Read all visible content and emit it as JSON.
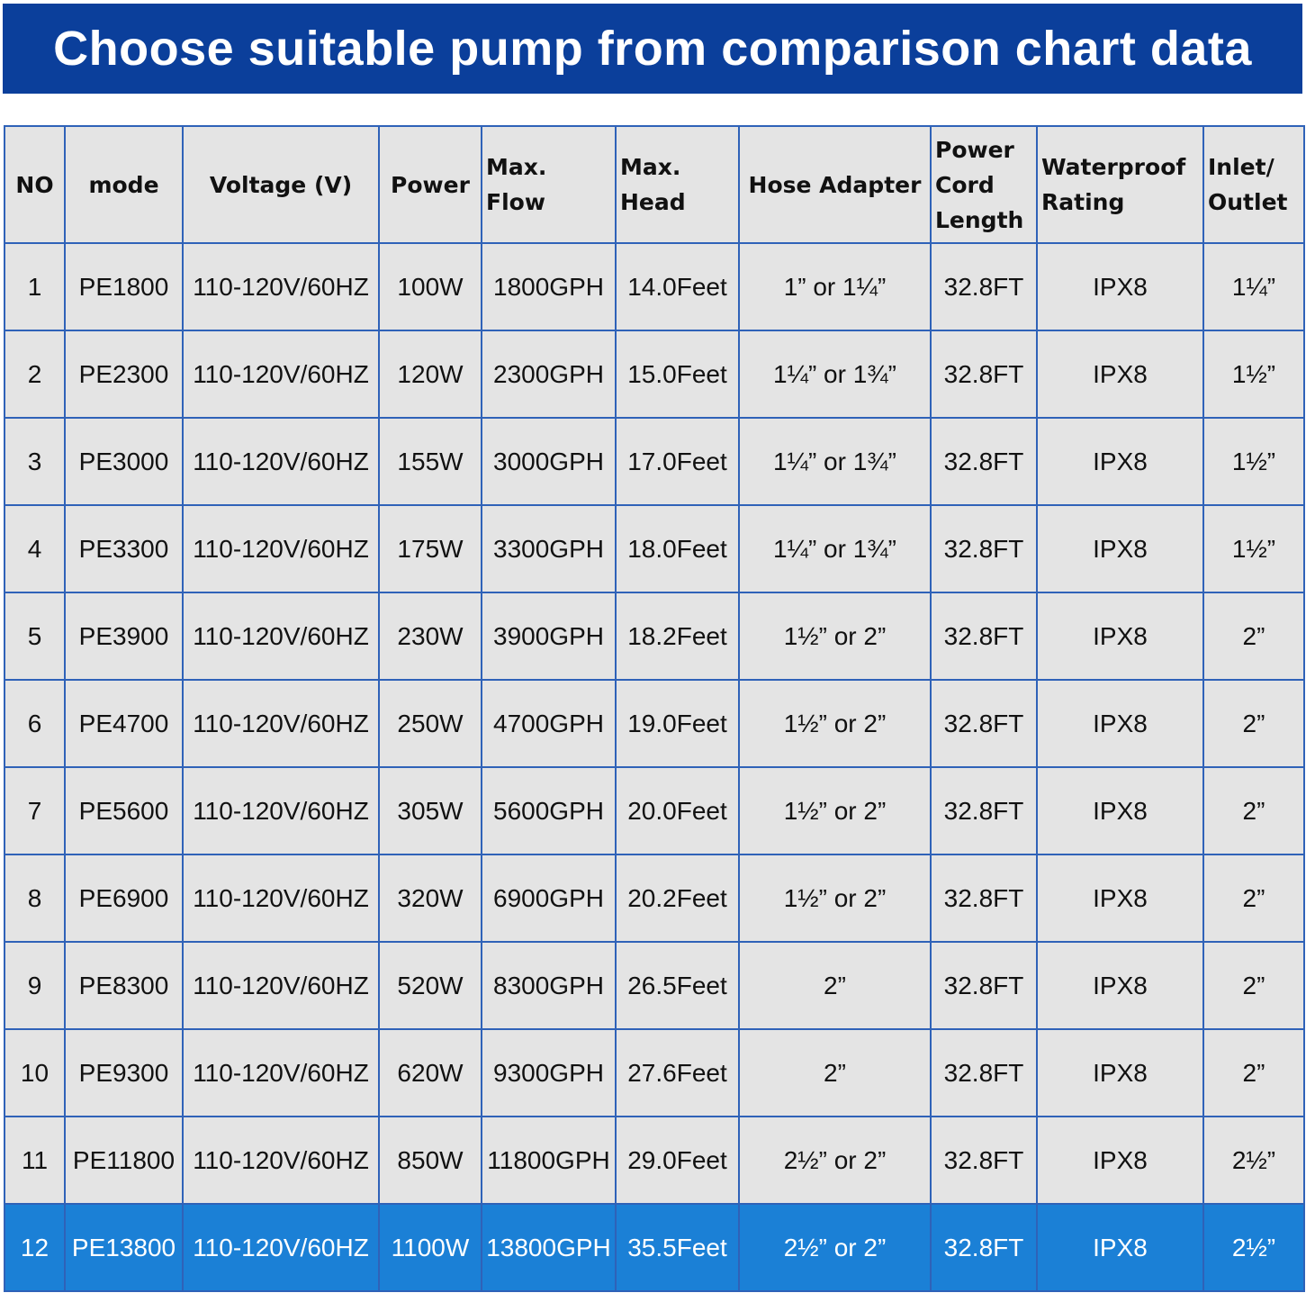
{
  "header": {
    "title": "Choose suitable pump from comparison chart data"
  },
  "table": {
    "columns": [
      "NO",
      "mode",
      "Voltage (V)",
      "Power",
      "Max. Flow",
      "Max. Head",
      "Hose Adapter",
      "Power Cord Length",
      "Waterproof Rating",
      "Inlet/ Outlet"
    ],
    "rows": [
      [
        "1",
        "PE1800",
        "110-120V/60HZ",
        "100W",
        "1800GPH",
        "14.0Feet",
        "1” or 1¼”",
        "32.8FT",
        "IPX8",
        "1¼”"
      ],
      [
        "2",
        "PE2300",
        "110-120V/60HZ",
        "120W",
        "2300GPH",
        "15.0Feet",
        "1¼” or 1¾”",
        "32.8FT",
        "IPX8",
        "1½”"
      ],
      [
        "3",
        "PE3000",
        "110-120V/60HZ",
        "155W",
        "3000GPH",
        "17.0Feet",
        "1¼” or 1¾”",
        "32.8FT",
        "IPX8",
        "1½”"
      ],
      [
        "4",
        "PE3300",
        "110-120V/60HZ",
        "175W",
        "3300GPH",
        "18.0Feet",
        "1¼” or 1¾”",
        "32.8FT",
        "IPX8",
        "1½”"
      ],
      [
        "5",
        "PE3900",
        "110-120V/60HZ",
        "230W",
        "3900GPH",
        "18.2Feet",
        "1½” or 2”",
        "32.8FT",
        "IPX8",
        "2”"
      ],
      [
        "6",
        "PE4700",
        "110-120V/60HZ",
        "250W",
        "4700GPH",
        "19.0Feet",
        "1½” or 2”",
        "32.8FT",
        "IPX8",
        "2”"
      ],
      [
        "7",
        "PE5600",
        "110-120V/60HZ",
        "305W",
        "5600GPH",
        "20.0Feet",
        "1½” or 2”",
        "32.8FT",
        "IPX8",
        "2”"
      ],
      [
        "8",
        "PE6900",
        "110-120V/60HZ",
        "320W",
        "6900GPH",
        "20.2Feet",
        "1½” or 2”",
        "32.8FT",
        "IPX8",
        "2”"
      ],
      [
        "9",
        "PE8300",
        "110-120V/60HZ",
        "520W",
        "8300GPH",
        "26.5Feet",
        "2”",
        "32.8FT",
        "IPX8",
        "2”"
      ],
      [
        "10",
        "PE9300",
        "110-120V/60HZ",
        "620W",
        "9300GPH",
        "27.6Feet",
        "2”",
        "32.8FT",
        "IPX8",
        "2”"
      ],
      [
        "11",
        "PE11800",
        "110-120V/60HZ",
        "850W",
        "11800GPH",
        "29.0Feet",
        "2½” or 2”",
        "32.8FT",
        "IPX8",
        "2½”"
      ],
      [
        "12",
        "PE13800",
        "110-120V/60HZ",
        "1100W",
        "13800GPH",
        "35.5Feet",
        "2½” or 2”",
        "32.8FT",
        "IPX8",
        "2½”"
      ]
    ]
  }
}
